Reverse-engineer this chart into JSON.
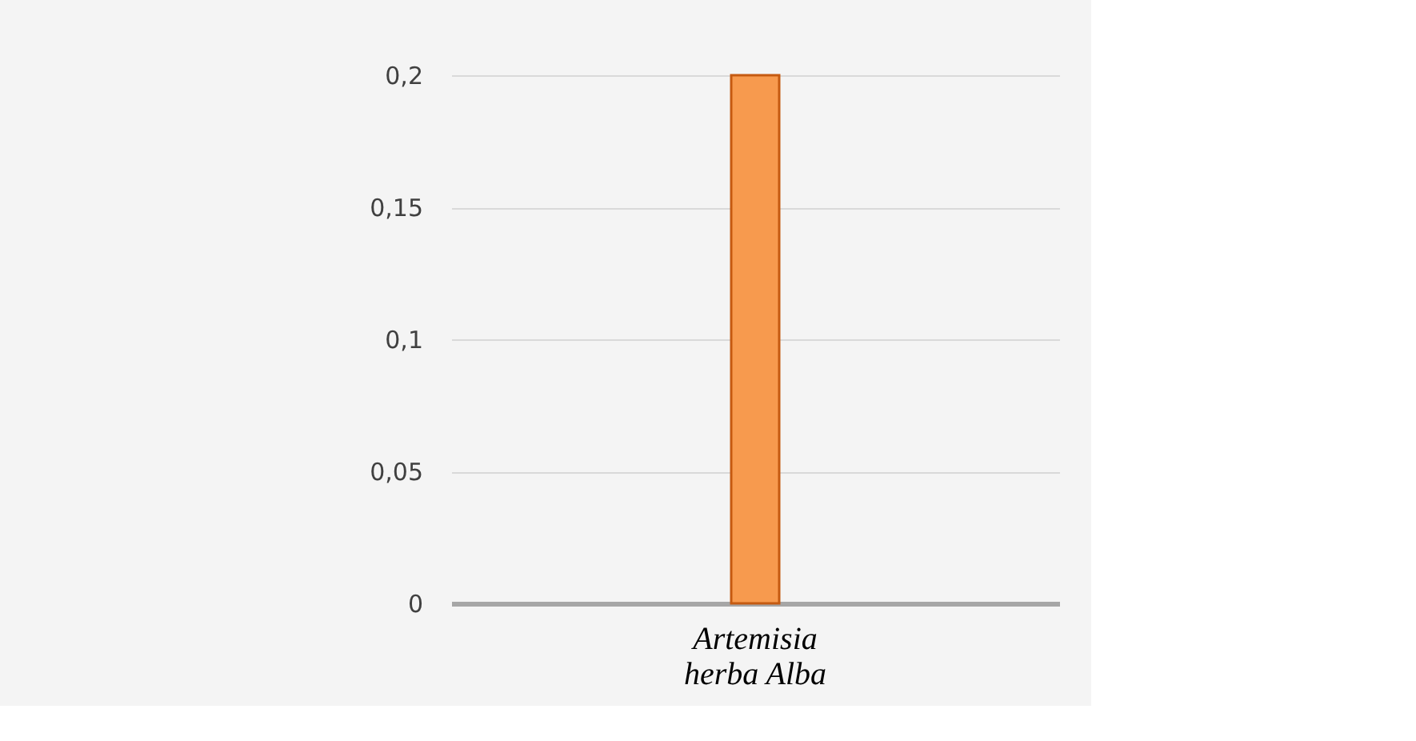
{
  "chart_data": {
    "type": "bar",
    "categories": [
      "Artemisia herba Alba"
    ],
    "values": [
      0.2
    ],
    "color": "#f79a4e",
    "ylim": [
      0,
      0.2
    ],
    "yticks": [
      0,
      {
        "value": 0.05,
        "label": "0,05"
      },
      {
        "value": 0.1,
        "label": "0,1"
      },
      {
        "value": 0.15,
        "label": "0,15"
      },
      {
        "value": 0.2,
        "label": "0,2"
      }
    ],
    "grid": "y"
  }
}
